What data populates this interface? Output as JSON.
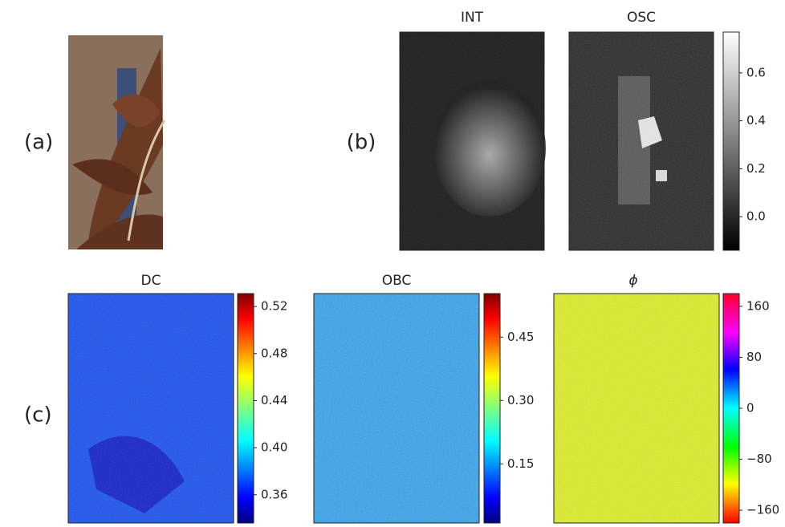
{
  "panels": [
    {
      "label": "(a)"
    },
    {
      "label": "(b)",
      "images": [
        {
          "title": "INT"
        },
        {
          "title": "OSC"
        }
      ],
      "colorbar": {
        "cmap": "gray",
        "lim": [
          -0.14,
          0.77
        ],
        "ticks": [
          {
            "value": 0,
            "label": "0.0"
          },
          0.2,
          0.4,
          0.6
        ]
      }
    },
    {
      "label": "(c)",
      "images": [
        {
          "title": "DC",
          "colorbar": {
            "cmap": "jet",
            "lim": [
              0.336,
              0.531
            ],
            "ticks": [
              0.36,
              {
                "value": 0.4,
                "label": "0.40"
              },
              0.44,
              0.48,
              0.52
            ]
          }
        },
        {
          "title": "OBC",
          "colorbar": {
            "cmap": "jet",
            "lim": [
              0.01,
              0.553
            ],
            "ticks": [
              0.15,
              {
                "value": 0.3,
                "label": "0.30"
              },
              0.45
            ]
          }
        },
        {
          "title": "ϕ",
          "colorbar": {
            "cmap": "hsv",
            "lim": [
              -180,
              180
            ],
            "ticks": [
              {
                "value": -160,
                "label": "−160"
              },
              {
                "value": -80,
                "label": "−80"
              },
              0,
              80,
              160
            ]
          }
        }
      ]
    }
  ]
}
